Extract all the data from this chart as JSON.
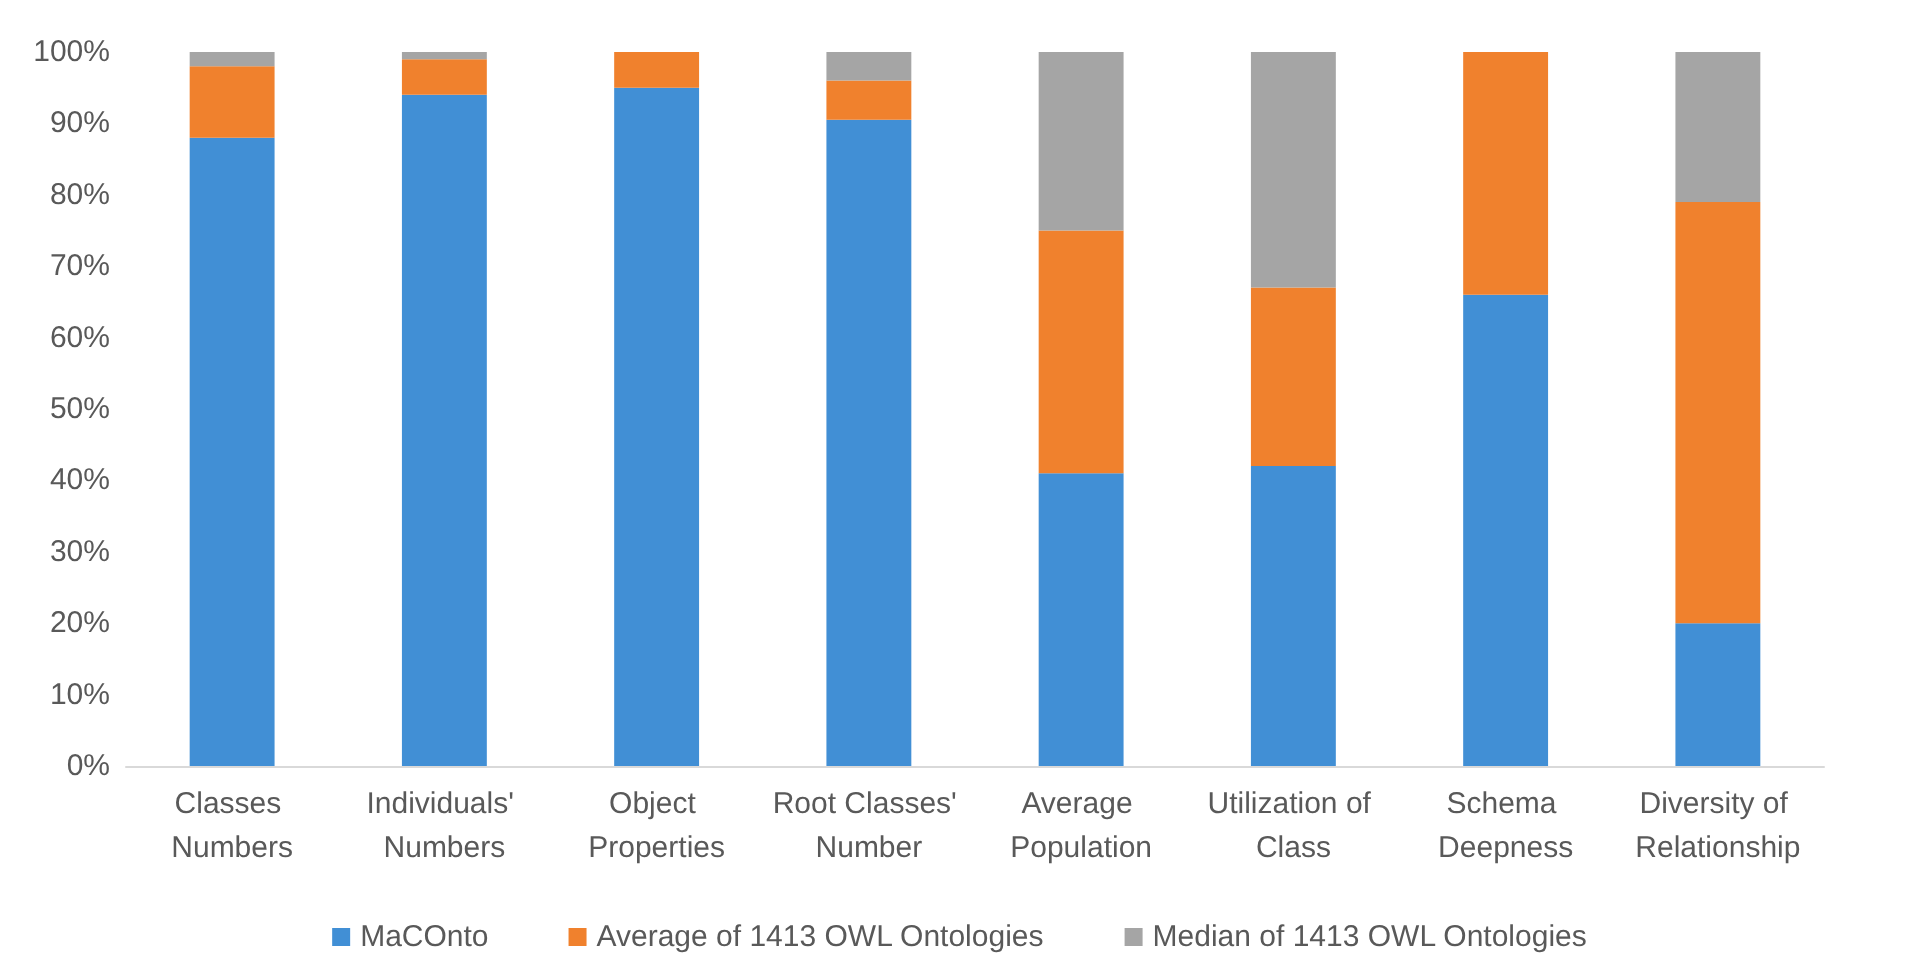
{
  "chart_data": {
    "type": "bar",
    "stacked": true,
    "categories": [
      "Classes Numbers",
      "Individuals' Numbers",
      "Object Properties",
      "Root Classes' Number",
      "Average Population",
      "Utilization of Class",
      "Schema Deepness",
      "Diversity of Relationship"
    ],
    "series": [
      {
        "name": "MaCOnto",
        "color": "#418fd5",
        "values": [
          88,
          94,
          95,
          90.5,
          41,
          42,
          66,
          20
        ]
      },
      {
        "name": "Average of 1413 OWL Ontologies",
        "color": "#f0812d",
        "values": [
          10,
          5,
          5,
          5.5,
          34,
          25,
          34,
          59
        ]
      },
      {
        "name": "Median of 1413 OWL Ontologies",
        "color": "#a5a5a5",
        "values": [
          2,
          1,
          0,
          4,
          25,
          33,
          0,
          21
        ]
      }
    ],
    "ylim": [
      0,
      100
    ],
    "yticks": [
      {
        "value": 0,
        "label": "0%"
      },
      {
        "value": 10,
        "label": "10%"
      },
      {
        "value": 20,
        "label": "20%"
      },
      {
        "value": 30,
        "label": "30%"
      },
      {
        "value": 40,
        "label": "40%"
      },
      {
        "value": 50,
        "label": "50%"
      },
      {
        "value": 60,
        "label": "60%"
      },
      {
        "value": 70,
        "label": "70%"
      },
      {
        "value": 80,
        "label": "80%"
      },
      {
        "value": 90,
        "label": "90%"
      },
      {
        "value": 100,
        "label": "100%"
      }
    ],
    "grid": false,
    "legend": "bottom"
  }
}
